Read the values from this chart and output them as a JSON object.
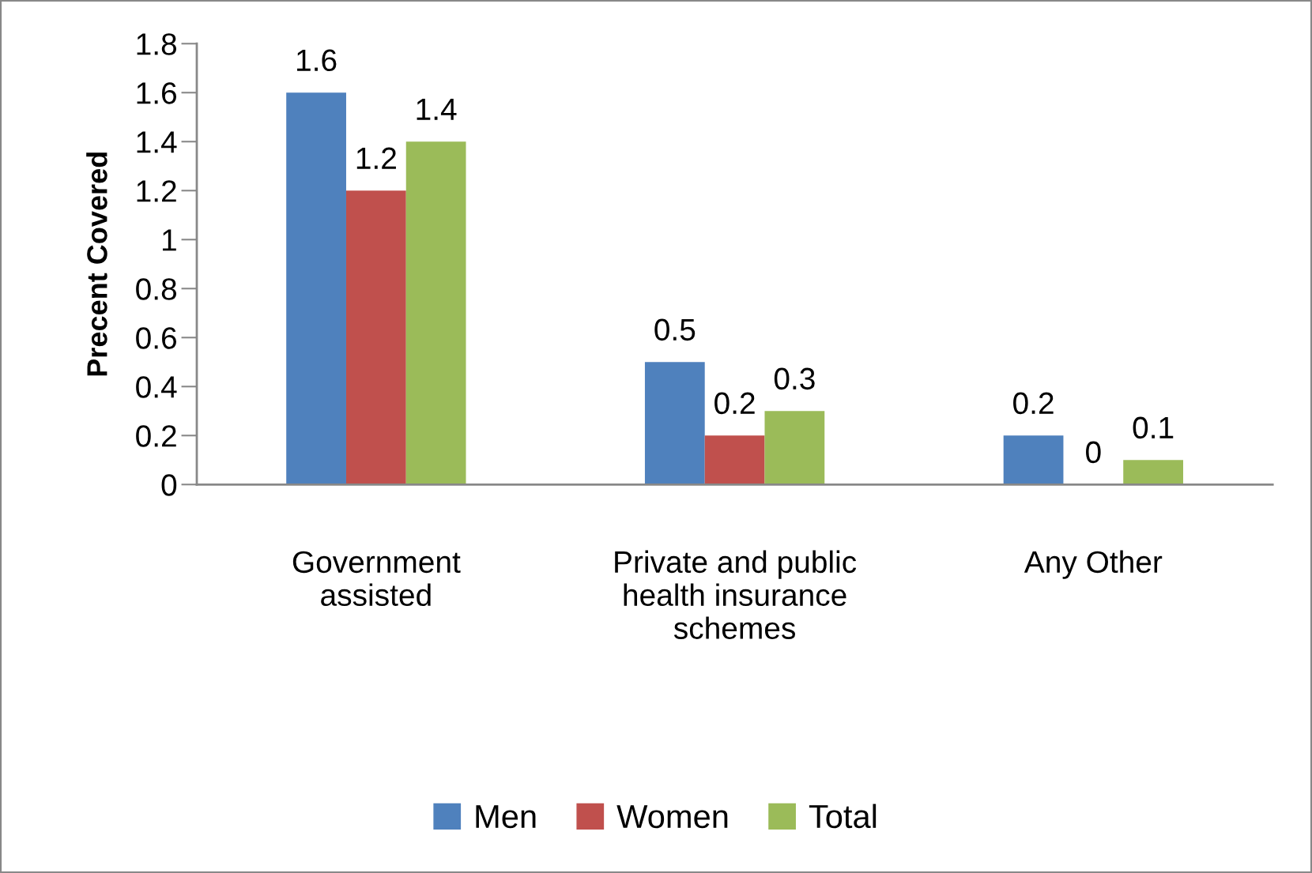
{
  "chart_data": {
    "type": "bar",
    "ylabel": "Precent Covered",
    "categories": [
      "Government assisted",
      "Private and public health insurance schemes",
      "Any Other"
    ],
    "series": [
      {
        "name": "Men",
        "color": "#4f81bd",
        "values": [
          1.6,
          0.5,
          0.2
        ]
      },
      {
        "name": "Women",
        "color": "#c0504d",
        "values": [
          1.2,
          0.2,
          0
        ]
      },
      {
        "name": "Total",
        "color": "#9bbb59",
        "values": [
          1.4,
          0.3,
          0.1
        ]
      }
    ],
    "ylim": [
      0,
      1.8
    ],
    "yticks": [
      0,
      0.2,
      0.4,
      0.6,
      0.8,
      1,
      1.2,
      1.4,
      1.6,
      1.8
    ],
    "data_labels": true,
    "legend": "bottom",
    "grid": false
  }
}
